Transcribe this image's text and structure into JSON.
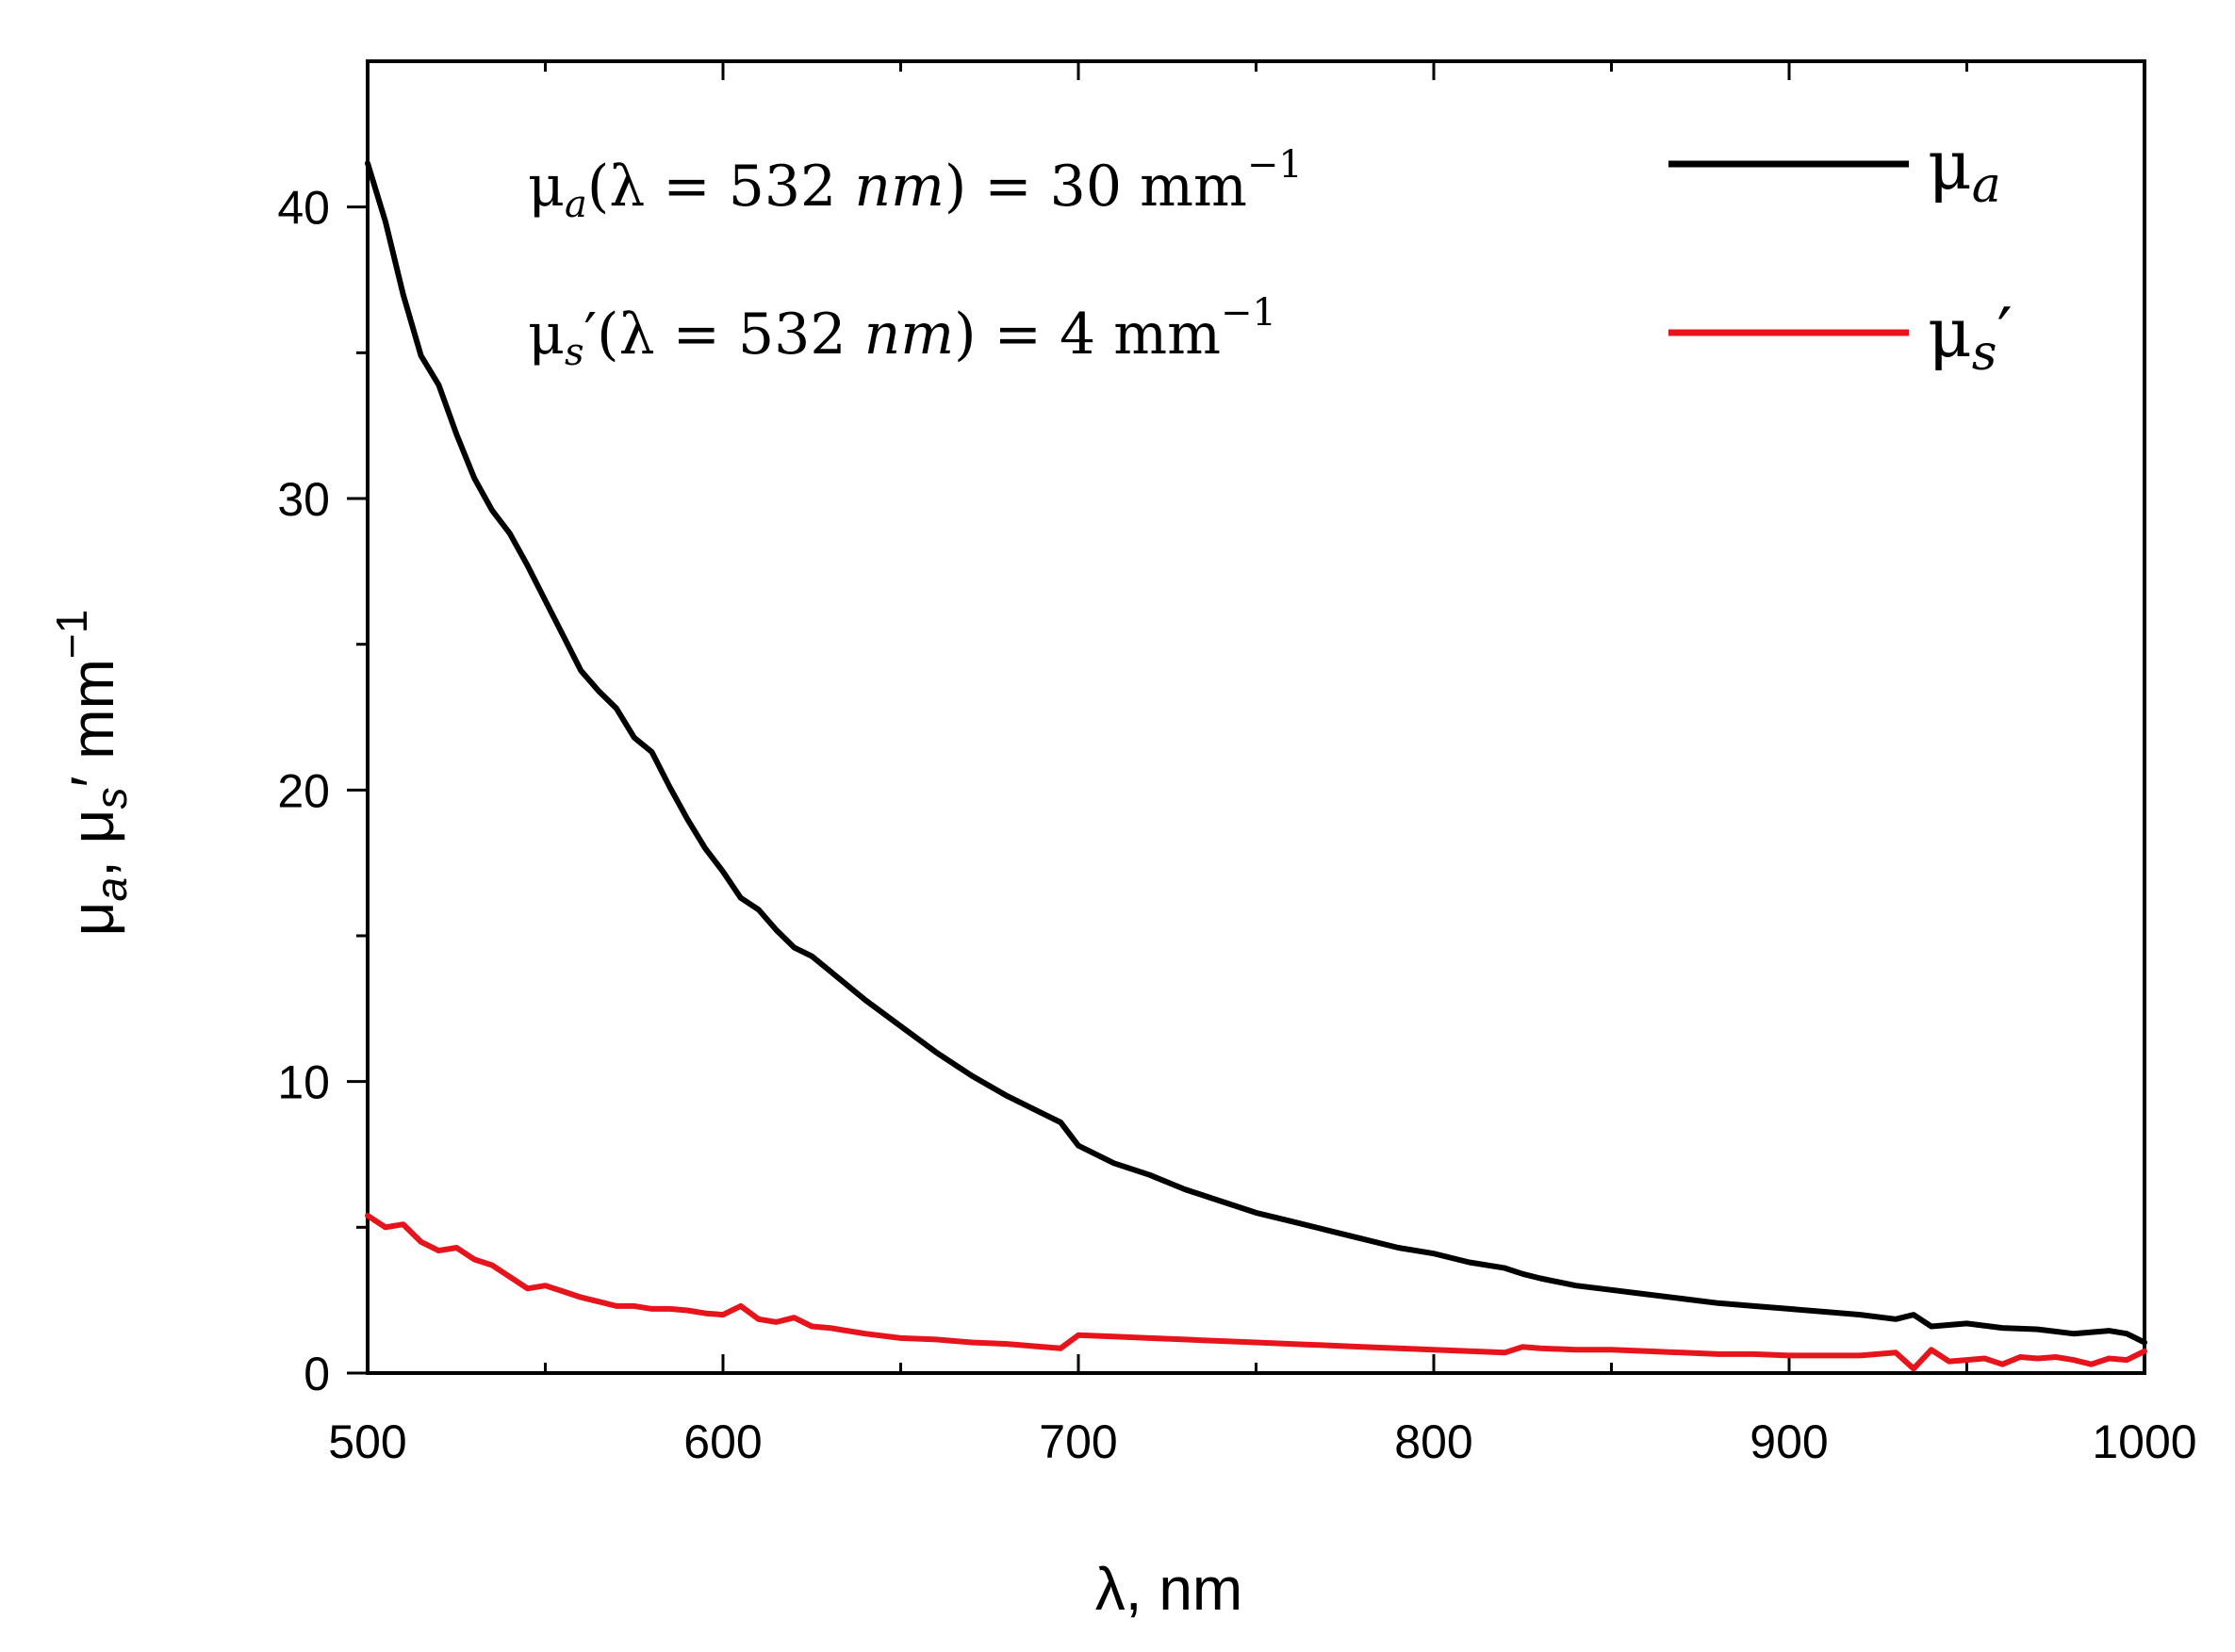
{
  "chart_data": {
    "type": "line",
    "xlabel": "λ, nm",
    "ylabel": {
      "parts": [
        "μ",
        "a",
        ", μ",
        "s",
        "′ mm",
        "−1"
      ],
      "text": "μa, μs′ mm−1"
    },
    "xlim": [
      500,
      1000
    ],
    "ylim": [
      0,
      45
    ],
    "x_ticks": [
      500,
      600,
      700,
      800,
      900,
      1000
    ],
    "x_minor_ticks": [
      550,
      650,
      750,
      850,
      950
    ],
    "y_ticks": [
      0,
      10,
      20,
      30,
      40
    ],
    "y_minor_ticks": [
      5,
      15,
      25,
      35
    ],
    "annotations": [
      {
        "id": "mua",
        "text": "μa(λ = 532 nm) = 30 mm−1",
        "sym": "μ",
        "sub": "a",
        "prime": "",
        "open": "(λ = 532 ",
        "unit": "nm",
        "close": ") = 30 mm",
        "sup": "−1"
      },
      {
        "id": "mus",
        "text": "μs′(λ = 532 nm) = 4 mm−1",
        "sym": "μ",
        "sub": "s",
        "prime": "′",
        "open": "(λ = 532 ",
        "unit": "nm",
        "close": ") = 4 mm",
        "sup": "−1"
      }
    ],
    "legend_position": "top-right",
    "series": [
      {
        "name": "μa",
        "label_sym": "μ",
        "label_sub": "a",
        "label_prime": "",
        "color": "#000000",
        "x": [
          500,
          505,
          510,
          515,
          520,
          525,
          530,
          535,
          540,
          545,
          550,
          555,
          560,
          565,
          570,
          575,
          580,
          585,
          590,
          595,
          600,
          605,
          610,
          615,
          620,
          625,
          630,
          640,
          650,
          660,
          670,
          680,
          690,
          695,
          700,
          710,
          720,
          730,
          740,
          750,
          760,
          770,
          780,
          790,
          800,
          810,
          820,
          825,
          830,
          840,
          850,
          860,
          870,
          880,
          890,
          900,
          910,
          920,
          930,
          935,
          940,
          950,
          960,
          970,
          980,
          990,
          995,
          1000
        ],
        "values": [
          41.5,
          39.5,
          37.0,
          34.9,
          33.9,
          32.2,
          30.7,
          29.6,
          28.8,
          27.7,
          26.5,
          25.3,
          24.1,
          23.4,
          22.8,
          21.8,
          21.3,
          20.1,
          19.0,
          18.0,
          17.2,
          16.3,
          15.9,
          15.2,
          14.6,
          14.3,
          13.8,
          12.8,
          11.9,
          11.0,
          10.2,
          9.5,
          8.9,
          8.6,
          7.8,
          7.2,
          6.8,
          6.3,
          5.9,
          5.5,
          5.2,
          4.9,
          4.6,
          4.3,
          4.1,
          3.8,
          3.6,
          3.4,
          3.25,
          3.0,
          2.85,
          2.7,
          2.55,
          2.4,
          2.3,
          2.2,
          2.1,
          2.0,
          1.85,
          2.0,
          1.6,
          1.7,
          1.55,
          1.5,
          1.35,
          1.45,
          1.35,
          1.05
        ]
      },
      {
        "name": "μs′",
        "label_sym": "μ",
        "label_sub": "s",
        "label_prime": "′",
        "color": "#e8141b",
        "x": [
          500,
          505,
          510,
          515,
          520,
          525,
          530,
          535,
          540,
          545,
          550,
          555,
          560,
          565,
          570,
          575,
          580,
          585,
          590,
          595,
          600,
          605,
          610,
          615,
          620,
          625,
          630,
          640,
          650,
          660,
          670,
          680,
          690,
          695,
          700,
          710,
          720,
          730,
          740,
          750,
          760,
          770,
          780,
          790,
          800,
          810,
          820,
          825,
          830,
          840,
          850,
          860,
          870,
          880,
          890,
          900,
          910,
          920,
          930,
          935,
          940,
          945,
          950,
          955,
          960,
          965,
          970,
          975,
          980,
          985,
          990,
          995,
          1000
        ],
        "values": [
          5.4,
          5.0,
          5.1,
          4.5,
          4.2,
          4.3,
          3.9,
          3.7,
          3.3,
          2.9,
          3.0,
          2.8,
          2.6,
          2.45,
          2.3,
          2.3,
          2.2,
          2.2,
          2.15,
          2.05,
          2.0,
          2.3,
          1.85,
          1.75,
          1.9,
          1.6,
          1.55,
          1.35,
          1.2,
          1.15,
          1.05,
          1.0,
          0.9,
          0.85,
          1.3,
          1.25,
          1.2,
          1.15,
          1.1,
          1.05,
          1.0,
          0.95,
          0.9,
          0.85,
          0.8,
          0.75,
          0.7,
          0.9,
          0.85,
          0.8,
          0.8,
          0.75,
          0.7,
          0.65,
          0.65,
          0.6,
          0.6,
          0.6,
          0.7,
          0.15,
          0.8,
          0.4,
          0.45,
          0.5,
          0.3,
          0.55,
          0.5,
          0.55,
          0.45,
          0.3,
          0.5,
          0.45,
          0.75
        ]
      }
    ]
  }
}
